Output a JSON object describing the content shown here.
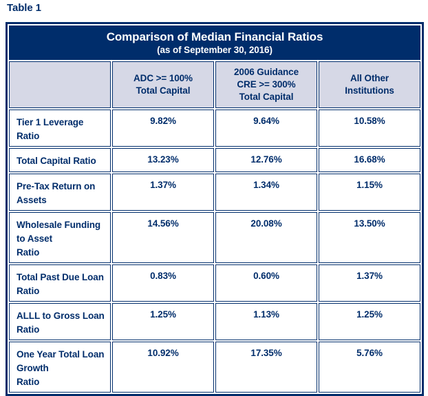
{
  "page": {
    "label": "Table 1"
  },
  "table": {
    "title": "Comparison of Median Financial Ratios",
    "subtitle": "(as of September 30, 2016)",
    "columns": [
      "",
      "ADC >= 100%\nTotal Capital",
      "2006 Guidance\nCRE >= 300%\nTotal Capital",
      "All Other\nInstitutions"
    ],
    "rows": [
      {
        "label": "Tier 1 Leverage Ratio",
        "values": [
          "9.82%",
          "9.64%",
          "10.58%"
        ]
      },
      {
        "label": "Total Capital Ratio",
        "values": [
          "13.23%",
          "12.76%",
          "16.68%"
        ]
      },
      {
        "label": "Pre-Tax Return on Assets",
        "values": [
          "1.37%",
          "1.34%",
          "1.15%"
        ]
      },
      {
        "label": "Wholesale Funding to Asset\nRatio",
        "values": [
          "14.56%",
          "20.08%",
          "13.50%"
        ]
      },
      {
        "label": "Total Past Due Loan Ratio",
        "values": [
          "0.83%",
          "0.60%",
          "1.37%"
        ]
      },
      {
        "label": "ALLL to Gross Loan Ratio",
        "values": [
          "1.25%",
          "1.13%",
          "1.25%"
        ]
      },
      {
        "label": "One Year Total Loan Growth\nRatio",
        "values": [
          "10.92%",
          "17.35%",
          "5.76%"
        ]
      }
    ]
  },
  "colors": {
    "navy": "#002d6b",
    "header_bg": "#d6d8e6",
    "page_bg": "#ffffff",
    "text_on_navy": "#ffffff"
  },
  "chart_data": {
    "type": "table",
    "title": "Comparison of Median Financial Ratios",
    "subtitle": "(as of September 30, 2016)",
    "columns": [
      "ADC >= 100% Total Capital",
      "2006 Guidance CRE >= 300% Total Capital",
      "All Other Institutions"
    ],
    "rows": [
      {
        "metric": "Tier 1 Leverage Ratio",
        "values_pct": [
          9.82,
          9.64,
          10.58
        ]
      },
      {
        "metric": "Total Capital Ratio",
        "values_pct": [
          13.23,
          12.76,
          16.68
        ]
      },
      {
        "metric": "Pre-Tax Return on Assets",
        "values_pct": [
          1.37,
          1.34,
          1.15
        ]
      },
      {
        "metric": "Wholesale Funding to Asset Ratio",
        "values_pct": [
          14.56,
          20.08,
          13.5
        ]
      },
      {
        "metric": "Total Past Due Loan Ratio",
        "values_pct": [
          0.83,
          0.6,
          1.37
        ]
      },
      {
        "metric": "ALLL to Gross Loan Ratio",
        "values_pct": [
          1.25,
          1.13,
          1.25
        ]
      },
      {
        "metric": "One Year Total Loan Growth Ratio",
        "values_pct": [
          10.92,
          17.35,
          5.76
        ]
      }
    ]
  }
}
